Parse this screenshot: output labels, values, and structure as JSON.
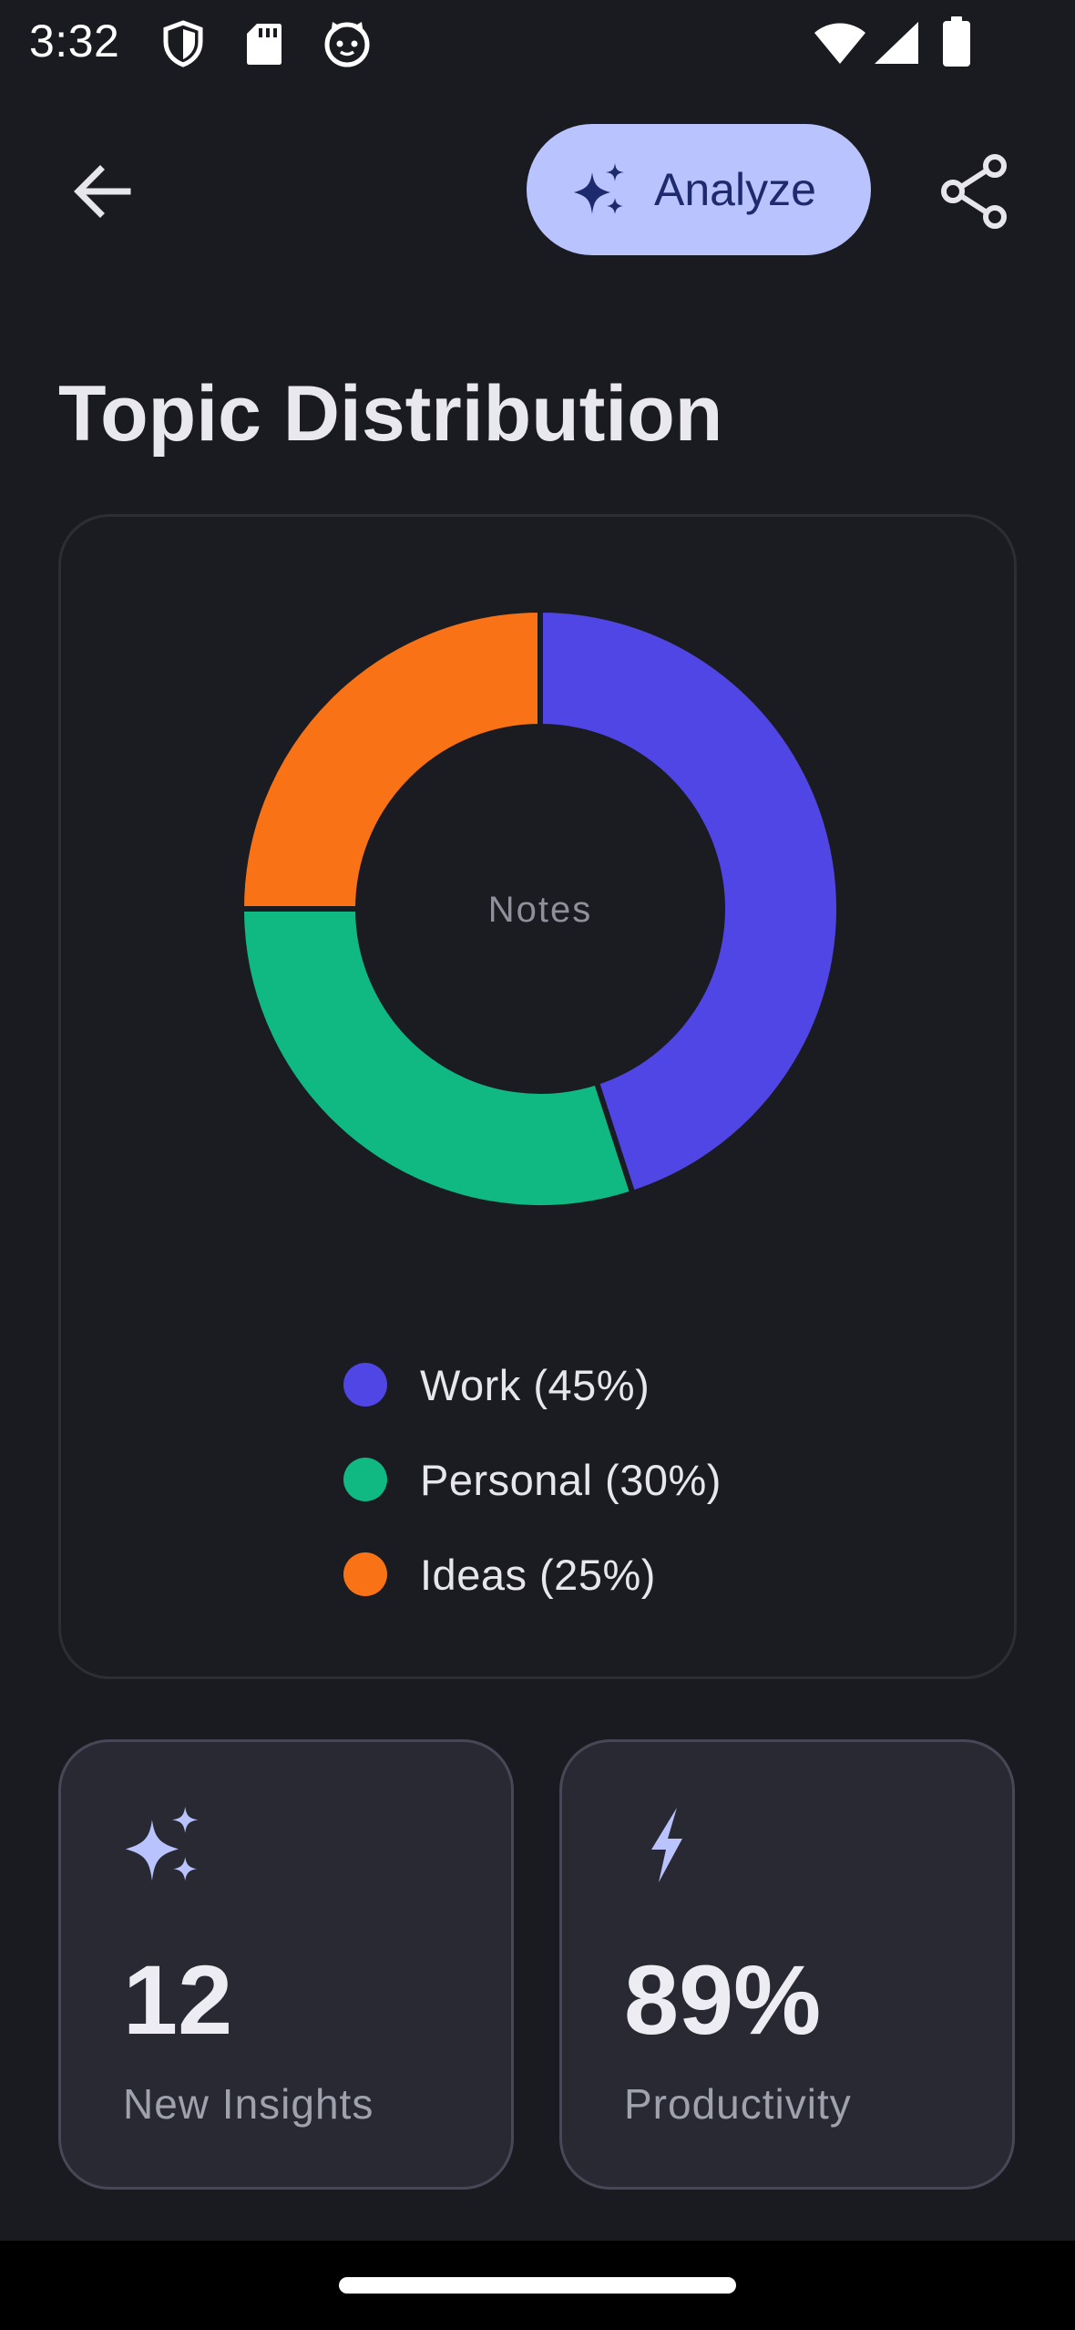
{
  "status_bar": {
    "time": "3:32",
    "left_icons": [
      "shield-icon",
      "sd-card-icon",
      "cat-face-icon"
    ],
    "right_icons": [
      "wifi-icon",
      "cellular-signal-icon",
      "battery-icon"
    ]
  },
  "app_bar": {
    "back_icon": "arrow-back-icon",
    "analyze_label": "Analyze",
    "analyze_icon": "sparkles-icon",
    "share_icon": "share-icon",
    "analyze_bg": "#b9c4ff"
  },
  "page": {
    "title": "Topic Distribution"
  },
  "chart_data": {
    "type": "pie",
    "style": "donut",
    "center_label": "Notes",
    "categories": [
      "Work",
      "Personal",
      "Ideas"
    ],
    "values": [
      45,
      30,
      25
    ],
    "colors": [
      "#4f46e5",
      "#10b981",
      "#f97316"
    ],
    "legend_labels": [
      "Work (45%)",
      "Personal (30%)",
      "Ideas (25%)"
    ],
    "legend_position": "bottom"
  },
  "stats": [
    {
      "icon": "sparkles-icon",
      "value": "12",
      "label": "New Insights"
    },
    {
      "icon": "lightning-icon",
      "value": "89%",
      "label": "Productivity"
    }
  ],
  "colors": {
    "background": "#1a1b20",
    "accent_light": "#b9c4ff",
    "stat_card_bg": "#282933"
  }
}
